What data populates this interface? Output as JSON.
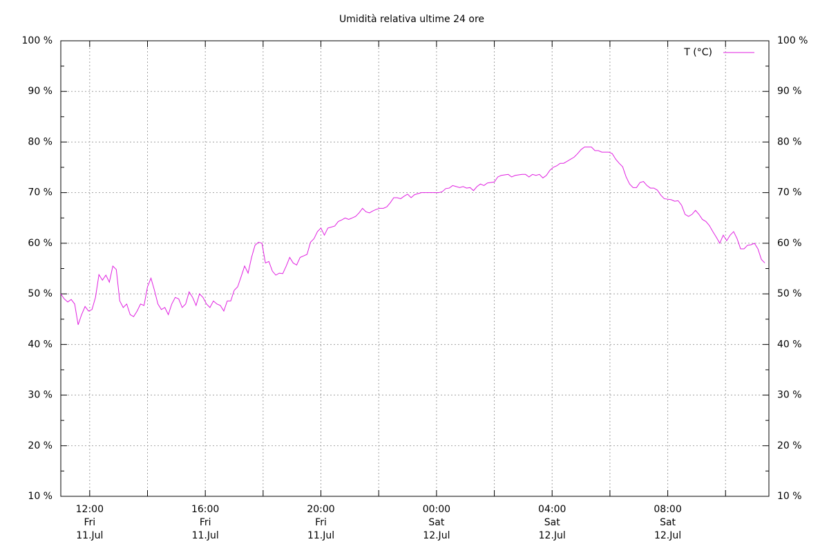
{
  "chart_data": {
    "type": "line",
    "title": "Umidità relativa ultime 24 ore",
    "xlim": [
      11,
      35.5
    ],
    "xticks": [
      {
        "value": 12,
        "label": "12:00\nFri\n11.Jul"
      },
      {
        "value": 16,
        "label": "16:00\nFri\n11.Jul"
      },
      {
        "value": 20,
        "label": "20:00\nFri\n11.Jul"
      },
      {
        "value": 24,
        "label": "00:00\nSat\n12.Jul"
      },
      {
        "value": 28,
        "label": "04:00\nSat\n12.Jul"
      },
      {
        "value": 32,
        "label": "08:00\nSat\n12.Jul"
      }
    ],
    "xminorticks": [
      14,
      18,
      22,
      26,
      30,
      34
    ],
    "ylim": [
      10,
      100
    ],
    "yticks": [
      {
        "value": 10,
        "label": "10 %"
      },
      {
        "value": 20,
        "label": "20 %"
      },
      {
        "value": 30,
        "label": "30 %"
      },
      {
        "value": 40,
        "label": "40 %"
      },
      {
        "value": 50,
        "label": "50 %"
      },
      {
        "value": 60,
        "label": "60 %"
      },
      {
        "value": 70,
        "label": "70 %"
      },
      {
        "value": 80,
        "label": "80 %"
      },
      {
        "value": 90,
        "label": "90 %"
      },
      {
        "value": 100,
        "label": "100 %"
      }
    ],
    "yminorticks": [
      15,
      25,
      35,
      45,
      55,
      65,
      75,
      85,
      95
    ],
    "grid": true,
    "legend": "top-right",
    "x": [
      11,
      11.12,
      11.24,
      11.36,
      11.48,
      11.6,
      11.72,
      11.84,
      11.96,
      12.08,
      12.2,
      12.32,
      12.44,
      12.56,
      12.68,
      12.8,
      12.92,
      13.04,
      13.16,
      13.28,
      13.4,
      13.52,
      13.64,
      13.76,
      13.88,
      14,
      14.12,
      14.24,
      14.36,
      14.48,
      14.6,
      14.72,
      14.84,
      14.96,
      15.08,
      15.2,
      15.32,
      15.44,
      15.56,
      15.68,
      15.8,
      15.92,
      16.04,
      16.16,
      16.28,
      16.4,
      16.52,
      16.64,
      16.76,
      16.88,
      17,
      17.12,
      17.24,
      17.36,
      17.48,
      17.6,
      17.72,
      17.84,
      17.96,
      18.08,
      18.2,
      18.32,
      18.44,
      18.56,
      18.68,
      18.8,
      18.92,
      19.04,
      19.16,
      19.28,
      19.4,
      19.52,
      19.64,
      19.76,
      19.88,
      20,
      20.12,
      20.24,
      20.36,
      20.48,
      20.6,
      20.72,
      20.84,
      20.96,
      21.08,
      21.2,
      21.32,
      21.44,
      21.56,
      21.68,
      21.8,
      21.92,
      22.04,
      22.16,
      22.28,
      22.4,
      22.52,
      22.64,
      22.76,
      22.88,
      23,
      23.12,
      23.24,
      23.36,
      23.48,
      23.6,
      23.72,
      23.84,
      23.96,
      24.08,
      24.2,
      24.32,
      24.44,
      24.56,
      24.68,
      24.8,
      24.92,
      25.04,
      25.16,
      25.28,
      25.4,
      25.52,
      25.64,
      25.76,
      25.88,
      26,
      26.12,
      26.24,
      26.36,
      26.48,
      26.6,
      26.72,
      26.84,
      26.96,
      27.08,
      27.2,
      27.32,
      27.44,
      27.56,
      27.68,
      27.8,
      27.92,
      28.04,
      28.16,
      28.28,
      28.4,
      28.52,
      28.64,
      28.76,
      28.88,
      29,
      29.12,
      29.24,
      29.36,
      29.48,
      29.6,
      29.72,
      29.84,
      29.96,
      30.08,
      30.2,
      30.32,
      30.44,
      30.56,
      30.68,
      30.8,
      30.92,
      31.04,
      31.16,
      31.28,
      31.4,
      31.52,
      31.64,
      31.76,
      31.88,
      32,
      32.12,
      32.24,
      32.36,
      32.48,
      32.6,
      32.72,
      32.84,
      32.96,
      33.08,
      33.2,
      33.32,
      33.44,
      33.56,
      33.68,
      33.8,
      33.92,
      34.04,
      34.16,
      34.28,
      34.4,
      34.52,
      34.64,
      34.76,
      34.88,
      35,
      35.12,
      35.24,
      35.36
    ],
    "series": [
      {
        "name": "T (°C)",
        "color": "#e020e0",
        "values": [
          50,
          49,
          48.4,
          48.9,
          48,
          43.9,
          45.9,
          47.5,
          46.6,
          46.9,
          49.3,
          53.8,
          52.7,
          53.7,
          52.3,
          55.5,
          54.8,
          48.6,
          47.3,
          48,
          45.9,
          45.5,
          46.6,
          48,
          47.7,
          51.4,
          53.1,
          50.7,
          48,
          46.9,
          47.3,
          45.9,
          48,
          49.3,
          49,
          47.3,
          48,
          50.4,
          49.3,
          47.7,
          50,
          49.3,
          48,
          47.3,
          48.6,
          48,
          47.7,
          46.6,
          48.6,
          48.6,
          50.7,
          51.4,
          53.4,
          55.5,
          54.1,
          57.2,
          59.6,
          60.2,
          60,
          56.1,
          56.4,
          54.5,
          53.7,
          54.1,
          54,
          55.5,
          57.2,
          56.1,
          55.7,
          57.2,
          57.5,
          57.8,
          60.2,
          60.9,
          62.3,
          63,
          61.6,
          63,
          63.2,
          63.4,
          64.3,
          64.6,
          65,
          64.7,
          65,
          65.3,
          66,
          66.9,
          66.2,
          66,
          66.4,
          66.7,
          66.9,
          66.9,
          67.2,
          68,
          69,
          69,
          68.8,
          69.3,
          69.7,
          69,
          69.6,
          69.8,
          70,
          70,
          70,
          70,
          70,
          70,
          70.2,
          70.8,
          70.9,
          71.4,
          71.2,
          71,
          71.2,
          70.9,
          71,
          70.4,
          71.2,
          71.7,
          71.4,
          71.9,
          72,
          72.1,
          73.1,
          73.4,
          73.5,
          73.6,
          73.1,
          73.4,
          73.5,
          73.6,
          73.6,
          73.1,
          73.6,
          73.4,
          73.6,
          72.9,
          73.4,
          74.4,
          75,
          75.3,
          75.8,
          75.8,
          76.2,
          76.6,
          77,
          77.7,
          78.5,
          79,
          79,
          79,
          78.3,
          78.3,
          78,
          78,
          78,
          77.7,
          76.6,
          75.8,
          75.1,
          73.1,
          71.7,
          71,
          71,
          72,
          72.2,
          71.4,
          70.9,
          70.9,
          70.5,
          69.5,
          68.8,
          68.7,
          68.6,
          68.3,
          68.4,
          67.5,
          65.7,
          65.3,
          65.7,
          66.5,
          65.7,
          64.7,
          64.3,
          63.5,
          62.3,
          61.2,
          60,
          61.6,
          60.5,
          61.6,
          62.3,
          60.9,
          58.9,
          58.9,
          59.6,
          59.7,
          60,
          58.9,
          56.8,
          56.1
        ]
      }
    ]
  }
}
